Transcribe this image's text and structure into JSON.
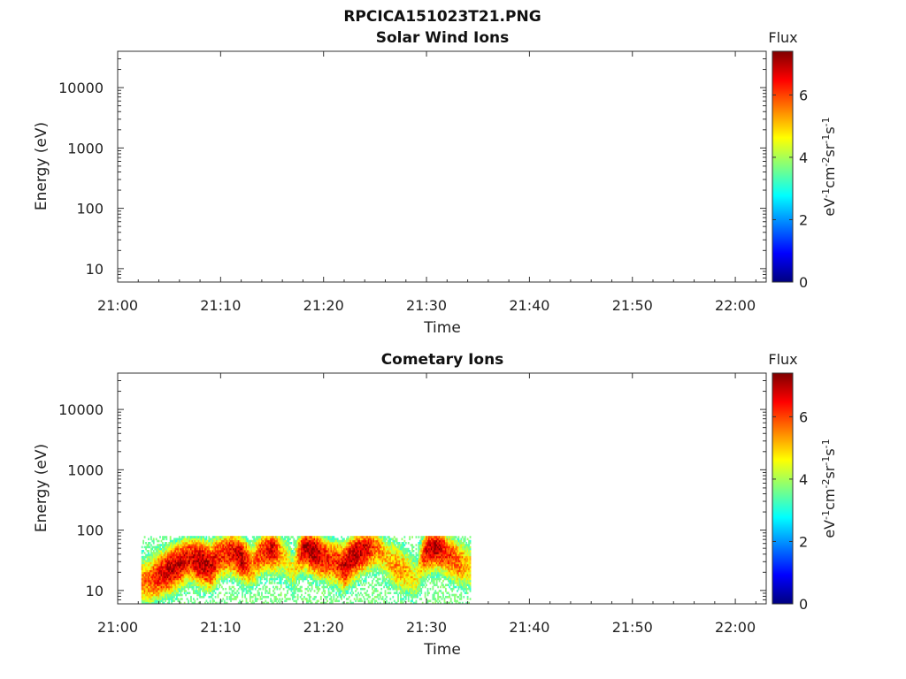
{
  "figure": {
    "title": "RPCICA151023T21.PNG"
  },
  "colormap": [
    "#00007f",
    "#0000ff",
    "#007fff",
    "#00ffff",
    "#7fff7f",
    "#ffff00",
    "#ff7f00",
    "#ff0000",
    "#7f0000"
  ],
  "chart_data": [
    {
      "type": "heatmap",
      "title": "Solar Wind Ions",
      "xlabel": "Time",
      "ylabel": "Energy (eV)",
      "x_range": [
        "21:00",
        "22:03"
      ],
      "x_ticks": [
        "21:00",
        "21:10",
        "21:20",
        "21:30",
        "21:40",
        "21:50",
        "22:00"
      ],
      "y_scale": "log",
      "y_range": [
        6,
        40000
      ],
      "y_ticks": [
        10,
        100,
        1000,
        10000
      ],
      "y_tick_labels": [
        "10",
        "100",
        "1000",
        "10000"
      ],
      "colorbar": {
        "title": "Flux",
        "range": [
          0,
          7.4
        ],
        "ticks": [
          "0",
          "2",
          "4",
          "6"
        ]
      },
      "data": []
    },
    {
      "type": "heatmap",
      "title": "Cometary Ions",
      "xlabel": "Time",
      "ylabel": "Energy (eV)",
      "x_range": [
        "21:00",
        "22:03"
      ],
      "x_ticks": [
        "21:00",
        "21:10",
        "21:20",
        "21:30",
        "21:40",
        "21:50",
        "22:00"
      ],
      "y_scale": "log",
      "y_range": [
        6,
        40000
      ],
      "y_ticks": [
        10,
        100,
        1000,
        10000
      ],
      "y_tick_labels": [
        "10",
        "100",
        "1000",
        "10000"
      ],
      "colorbar": {
        "title": "Flux",
        "range": [
          0,
          7.4
        ],
        "ticks": [
          "0",
          "2",
          "4",
          "6"
        ]
      },
      "data_extent": {
        "time": [
          "21:02",
          "21:34"
        ],
        "energy_eV": [
          6,
          80
        ]
      },
      "time_profile": {
        "times": [
          "21:02",
          "21:03",
          "21:04",
          "21:05",
          "21:06",
          "21:07",
          "21:08",
          "21:09",
          "21:10",
          "21:11",
          "21:12",
          "21:13",
          "21:14",
          "21:15",
          "21:16",
          "21:17",
          "21:18",
          "21:19",
          "21:20",
          "21:21",
          "21:22",
          "21:23",
          "21:24",
          "21:25",
          "21:26",
          "21:27",
          "21:28",
          "21:29",
          "21:30",
          "21:31",
          "21:32",
          "21:33",
          "21:34"
        ],
        "peak_energy_eV": [
          15,
          14,
          18,
          22,
          28,
          35,
          30,
          25,
          40,
          45,
          35,
          25,
          45,
          50,
          40,
          20,
          55,
          45,
          35,
          30,
          25,
          40,
          50,
          55,
          35,
          25,
          20,
          15,
          50,
          55,
          40,
          30,
          25
        ],
        "peak_flux": [
          5.5,
          5.8,
          6.5,
          7.0,
          6.8,
          6.5,
          7.2,
          6.8,
          6.2,
          6.5,
          7.0,
          5.5,
          6.2,
          6.8,
          5.0,
          4.5,
          7.0,
          7.2,
          6.5,
          6.0,
          6.8,
          7.0,
          6.8,
          5.8,
          5.0,
          5.5,
          5.2,
          4.5,
          6.8,
          7.0,
          6.2,
          5.8,
          5.0
        ]
      }
    }
  ]
}
